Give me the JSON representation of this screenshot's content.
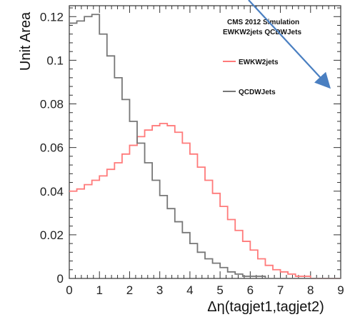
{
  "chart_data": {
    "type": "line",
    "style": "step-histogram",
    "xlabel": "Δη(tagjet1,tagjet2)",
    "ylabel": "Unit Area",
    "xlim": [
      0,
      9
    ],
    "ylim": [
      0,
      0.125
    ],
    "x_ticks": [
      "0",
      "1",
      "2",
      "3",
      "4",
      "5",
      "6",
      "7",
      "8",
      "9"
    ],
    "y_ticks": [
      "0",
      "0.02",
      "0.04",
      "0.06",
      "0.08",
      "0.1",
      "0.12"
    ],
    "y_tick_values": [
      0,
      0.02,
      0.04,
      0.06,
      0.08,
      0.1,
      0.12
    ],
    "bin_edges": [
      0,
      0.25,
      0.5,
      0.75,
      1.0,
      1.25,
      1.5,
      1.75,
      2.0,
      2.25,
      2.5,
      2.75,
      3.0,
      3.25,
      3.5,
      3.75,
      4.0,
      4.25,
      4.5,
      4.75,
      5.0,
      5.25,
      5.5,
      5.75,
      6.0,
      6.25,
      6.5,
      6.75,
      7.0,
      7.25,
      7.5,
      7.75,
      8.0,
      8.25,
      8.5,
      8.75,
      9.0
    ],
    "series": [
      {
        "name": "EWKW2jets",
        "color": "#ff7a7a",
        "values": [
          0.04,
          0.041,
          0.043,
          0.045,
          0.047,
          0.05,
          0.053,
          0.057,
          0.061,
          0.065,
          0.068,
          0.07,
          0.071,
          0.07,
          0.067,
          0.062,
          0.057,
          0.051,
          0.045,
          0.039,
          0.033,
          0.027,
          0.022,
          0.017,
          0.013,
          0.009,
          0.006,
          0.004,
          0.003,
          0.002,
          0.001,
          0.001,
          0.0,
          0.0,
          0.0,
          0.0
        ]
      },
      {
        "name": "QCDWJets",
        "color": "#777777",
        "values": [
          0.117,
          0.118,
          0.12,
          0.121,
          0.112,
          0.102,
          0.092,
          0.082,
          0.072,
          0.062,
          0.053,
          0.045,
          0.038,
          0.032,
          0.026,
          0.021,
          0.016,
          0.012,
          0.009,
          0.007,
          0.005,
          0.003,
          0.002,
          0.001,
          0.001,
          0.001,
          0.0,
          0.0,
          0.0,
          0.0,
          0.0,
          0.0,
          0.0,
          0.0,
          0.0,
          0.0
        ]
      }
    ],
    "legend_placement": "top-right",
    "annotation": [
      "CMS 2012 Simulation",
      "EWKW2jets QCDWJets"
    ],
    "arrow_color": "#4a7fc1"
  }
}
